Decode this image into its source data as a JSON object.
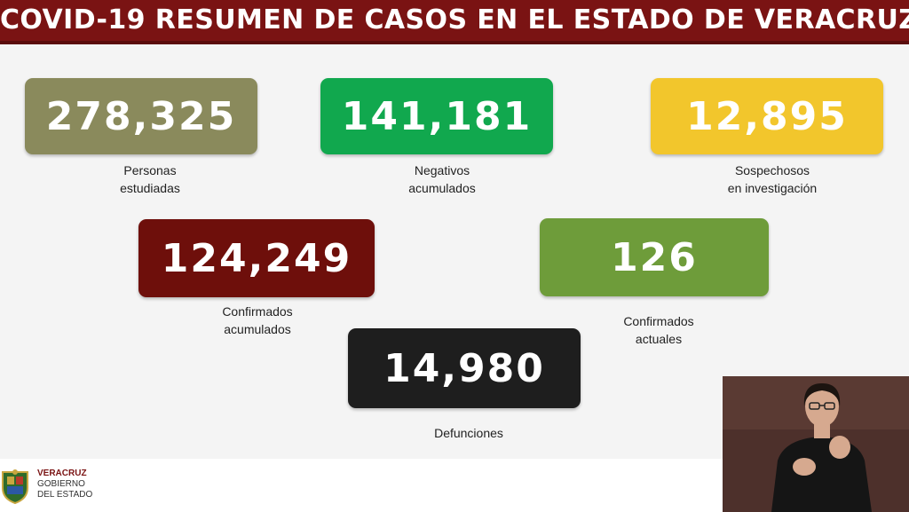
{
  "header": {
    "title": "COVID-19 RESUMEN DE CASOS EN EL ESTADO DE VERACRUZ"
  },
  "stats": {
    "personas": {
      "value": "278,325",
      "line1": "Personas",
      "line2": "estudiadas",
      "color": "#8a8a5c"
    },
    "negativos": {
      "value": "141,181",
      "line1": "Negativos",
      "line2": "acumulados",
      "color": "#11a84e"
    },
    "sospechosos": {
      "value": "12,895",
      "line1": "Sospechosos",
      "line2": "en investigación",
      "color": "#f2c62c"
    },
    "confirmados_acum": {
      "value": "124,249",
      "line1": "Confirmados",
      "line2": "acumulados",
      "color": "#6e0f0b"
    },
    "confirmados_act": {
      "value": "126",
      "line1": "Confirmados",
      "line2": "actuales",
      "color": "#6e9c3a"
    },
    "defunciones": {
      "value": "14,980",
      "line1": "Defunciones",
      "color": "#1e1e1e"
    }
  },
  "footer": {
    "logo": {
      "line1": "VERACRUZ",
      "line2": "GOBIERNO",
      "line3": "DEL ESTADO",
      "icon": "veracruz-shield-icon"
    }
  },
  "colors": {
    "header_bg": "#7a1313",
    "background": "#f4f4f4"
  }
}
